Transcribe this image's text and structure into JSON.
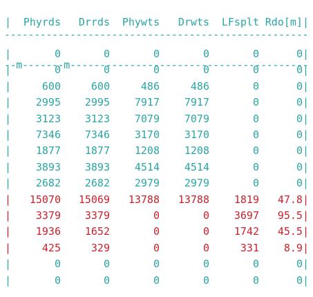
{
  "colors": {
    "teal": "#2aa5a5",
    "red": "#cc1f2a",
    "background": "#ffffff"
  },
  "top_rule": "----------------------------------------------------",
  "header": {
    "pipe": "|",
    "columns": [
      "Phyrds",
      "Drrds",
      "Phywts",
      "Drwts",
      "LFsplt",
      "Rdo[m]|"
    ]
  },
  "sub_rule": "--m-------m-----------------------------------------",
  "rows": [
    {
      "pipe": "|",
      "cells": [
        "0",
        "0",
        "0",
        "0",
        "0",
        "0|"
      ],
      "tone": "teal"
    },
    {
      "pipe": "|",
      "cells": [
        "0",
        "0",
        "0",
        "0",
        "0",
        "0|"
      ],
      "tone": "teal"
    },
    {
      "pipe": "|",
      "cells": [
        "600",
        "600",
        "486",
        "486",
        "0",
        "0|"
      ],
      "tone": "teal"
    },
    {
      "pipe": "|",
      "cells": [
        "2995",
        "2995",
        "7917",
        "7917",
        "0",
        "0|"
      ],
      "tone": "teal"
    },
    {
      "pipe": "|",
      "cells": [
        "3123",
        "3123",
        "7079",
        "7079",
        "0",
        "0|"
      ],
      "tone": "teal"
    },
    {
      "pipe": "|",
      "cells": [
        "7346",
        "7346",
        "3170",
        "3170",
        "0",
        "0|"
      ],
      "tone": "teal"
    },
    {
      "pipe": "|",
      "cells": [
        "1877",
        "1877",
        "1208",
        "1208",
        "0",
        "0|"
      ],
      "tone": "teal"
    },
    {
      "pipe": "|",
      "cells": [
        "3893",
        "3893",
        "4514",
        "4514",
        "0",
        "0|"
      ],
      "tone": "teal"
    },
    {
      "pipe": "|",
      "cells": [
        "2682",
        "2682",
        "2979",
        "2979",
        "0",
        "0|"
      ],
      "tone": "teal"
    },
    {
      "pipe": "|",
      "cells": [
        "15070",
        "15069",
        "13788",
        "13788",
        "1819",
        "47.8|"
      ],
      "tone": "red"
    },
    {
      "pipe": "|",
      "cells": [
        "3379",
        "3379",
        "0",
        "0",
        "3697",
        "95.5|"
      ],
      "tone": "red"
    },
    {
      "pipe": "|",
      "cells": [
        "1936",
        "1652",
        "0",
        "0",
        "1742",
        "45.5|"
      ],
      "tone": "red"
    },
    {
      "pipe": "|",
      "cells": [
        "425",
        "329",
        "0",
        "0",
        "331",
        "8.9|"
      ],
      "tone": "red"
    },
    {
      "pipe": "|",
      "cells": [
        "0",
        "0",
        "0",
        "0",
        "0",
        "0|"
      ],
      "tone": "teal"
    },
    {
      "pipe": "|",
      "cells": [
        "0",
        "0",
        "0",
        "0",
        "0",
        "0|"
      ],
      "tone": "teal"
    }
  ]
}
